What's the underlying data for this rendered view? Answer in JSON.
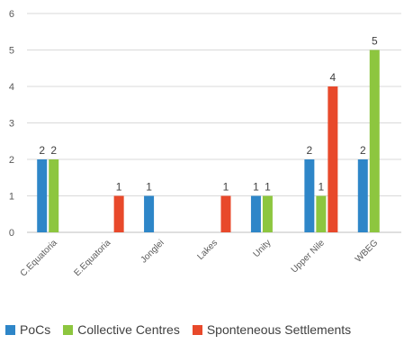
{
  "chart_data": {
    "type": "bar",
    "categories": [
      "C.Equatoria",
      "E.Equatoria",
      "Jonglei",
      "Lakes",
      "Unity",
      "Upper Nile",
      "WBEG"
    ],
    "series": [
      {
        "name": "PoCs",
        "color": "#2E86C8",
        "values": [
          2,
          null,
          1,
          null,
          1,
          2,
          2
        ]
      },
      {
        "name": "Collective Centres",
        "color": "#8DC63F",
        "values": [
          2,
          null,
          null,
          null,
          1,
          1,
          5
        ]
      },
      {
        "name": "Sponteneous Settlements",
        "color": "#E8492B",
        "values": [
          null,
          1,
          null,
          1,
          null,
          4,
          null
        ]
      }
    ],
    "ylim": [
      0,
      6
    ],
    "yticks": [
      0,
      1,
      2,
      3,
      4,
      5,
      6
    ],
    "grid": true,
    "legend_position": "bottom",
    "data_labels": true
  }
}
